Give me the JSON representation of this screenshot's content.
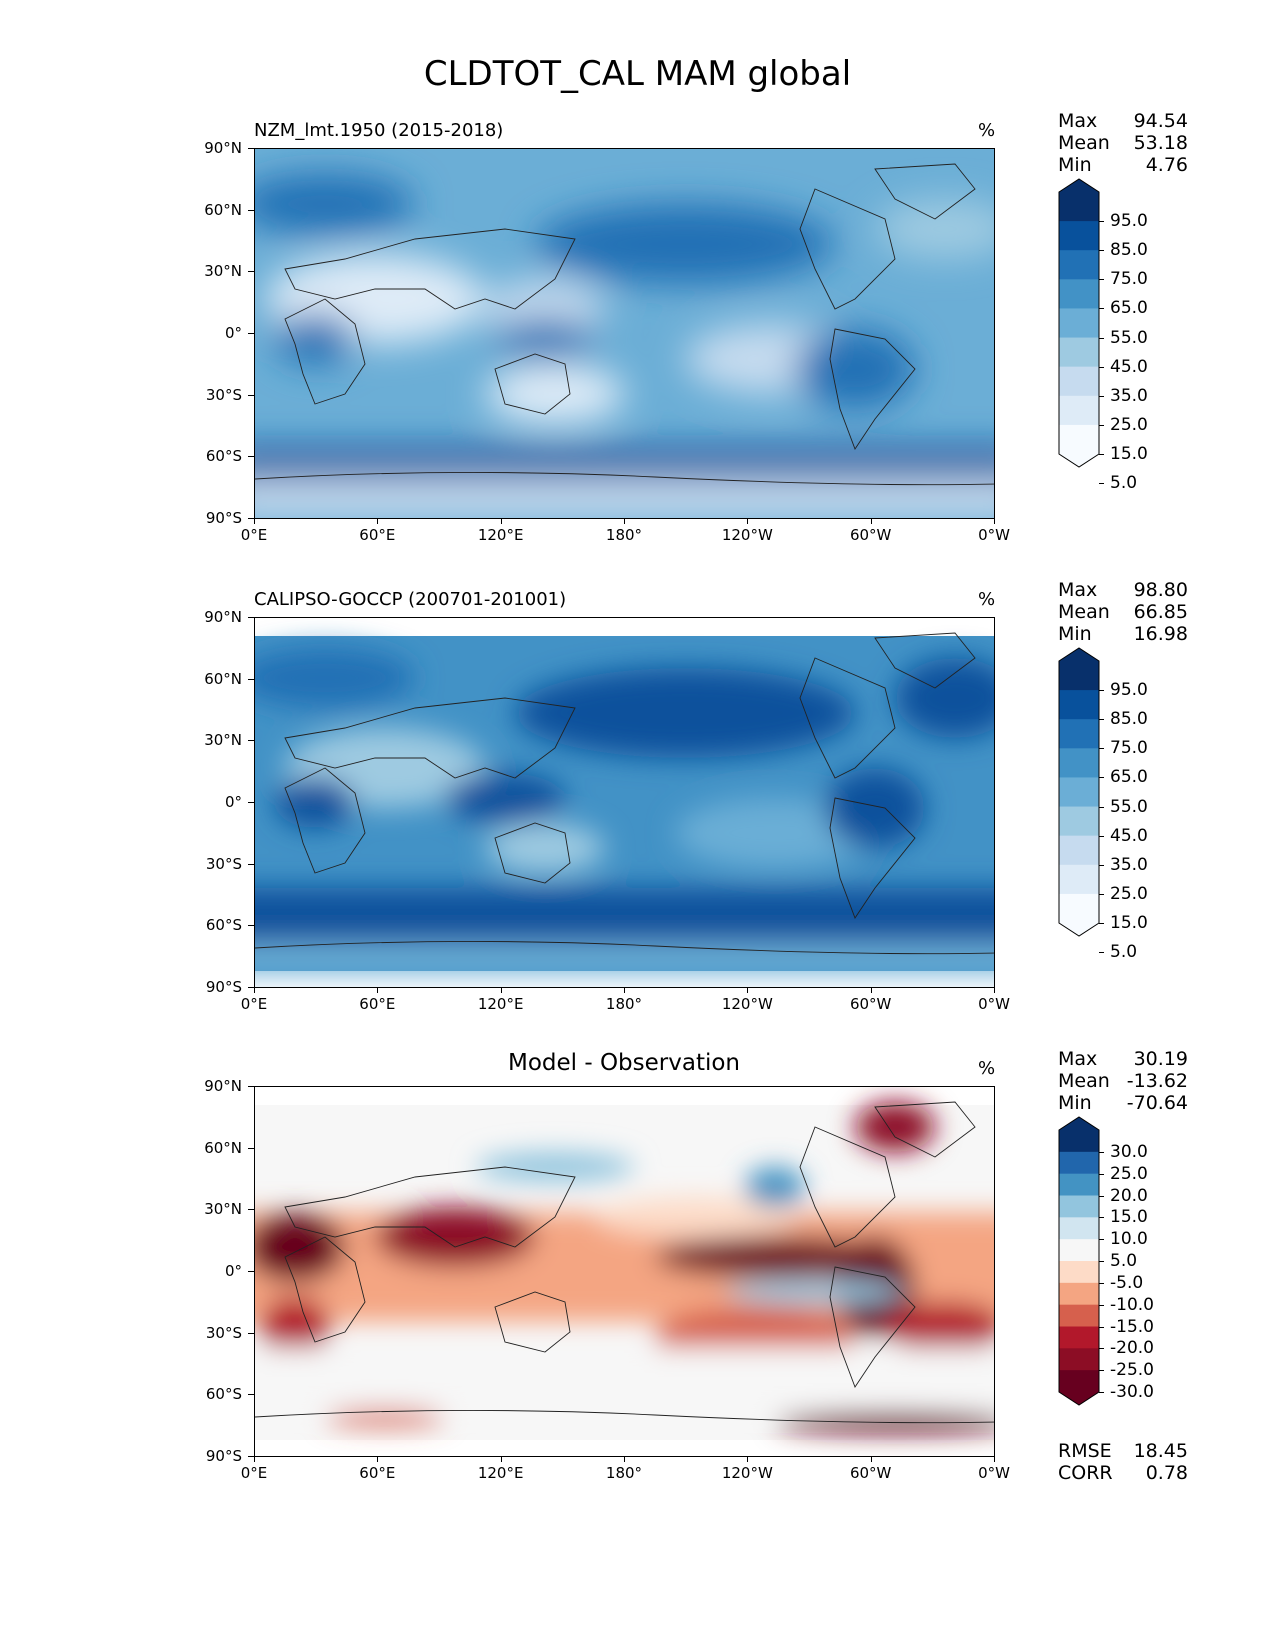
{
  "figure": {
    "title": "CLDTOT_CAL MAM global"
  },
  "axes": {
    "lat_labels": [
      "90°N",
      "60°N",
      "30°N",
      "0°",
      "30°S",
      "60°S",
      "90°S"
    ],
    "lon_labels": [
      "0°E",
      "60°E",
      "120°E",
      "180°",
      "120°W",
      "60°W",
      "0°W"
    ]
  },
  "panels": [
    {
      "title": "NZM_lmt.1950 (2015-2018)",
      "units": "%",
      "stats": [
        {
          "label": "Max",
          "value": "94.54"
        },
        {
          "label": "Mean",
          "value": "53.18"
        },
        {
          "label": "Min",
          "value": "4.76"
        }
      ],
      "colorbar": {
        "labels": [
          "95.0",
          "85.0",
          "75.0",
          "65.0",
          "55.0",
          "45.0",
          "35.0",
          "25.0",
          "15.0",
          "5.0"
        ],
        "colors": [
          "#08306b",
          "#08519c",
          "#2171b5",
          "#4292c6",
          "#6baed6",
          "#9ecae1",
          "#c6dbef",
          "#deebf7",
          "#f7fbff"
        ]
      }
    },
    {
      "title": "CALIPSO-GOCCP (200701-201001)",
      "units": "%",
      "stats": [
        {
          "label": "Max",
          "value": "98.80"
        },
        {
          "label": "Mean",
          "value": "66.85"
        },
        {
          "label": "Min",
          "value": "16.98"
        }
      ],
      "colorbar": {
        "labels": [
          "95.0",
          "85.0",
          "75.0",
          "65.0",
          "55.0",
          "45.0",
          "35.0",
          "25.0",
          "15.0",
          "5.0"
        ],
        "colors": [
          "#08306b",
          "#08519c",
          "#2171b5",
          "#4292c6",
          "#6baed6",
          "#9ecae1",
          "#c6dbef",
          "#deebf7",
          "#f7fbff"
        ]
      }
    },
    {
      "title": "Model - Observation",
      "units": "%",
      "stats": [
        {
          "label": "Max",
          "value": "30.19"
        },
        {
          "label": "Mean",
          "value": "-13.62"
        },
        {
          "label": "Min",
          "value": "-70.64"
        }
      ],
      "colorbar": {
        "labels": [
          "30.0",
          "25.0",
          "20.0",
          "15.0",
          "10.0",
          "5.0",
          "-5.0",
          "-10.0",
          "-15.0",
          "-20.0",
          "-25.0",
          "-30.0"
        ],
        "colors": [
          "#08306b",
          "#2166ac",
          "#4393c3",
          "#92c5de",
          "#d1e5f0",
          "#f7f7f7",
          "#fddbc7",
          "#f4a582",
          "#d6604d",
          "#b2182b",
          "#8c0d25",
          "#67001f"
        ]
      },
      "extra": [
        {
          "label": "RMSE",
          "value": "18.45"
        },
        {
          "label": "CORR",
          "value": "0.78"
        }
      ]
    }
  ]
}
